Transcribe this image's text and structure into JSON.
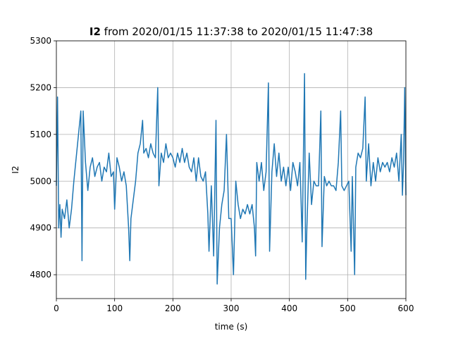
{
  "chart_data": {
    "type": "line",
    "title": {
      "bold": "I2",
      "rest": "from 2020/01/15 11:37:38 to 2020/01/15 11:47:38"
    },
    "xlabel": "time (s)",
    "ylabel": "I2",
    "xlim": [
      0,
      600
    ],
    "ylim": [
      4749,
      5300
    ],
    "xticks": [
      0,
      100,
      200,
      300,
      400,
      500,
      600
    ],
    "yticks": [
      4800,
      4900,
      5000,
      5100,
      5200,
      5300
    ],
    "grid": true,
    "series": [
      {
        "color": "#1f77b4",
        "x": [
          0,
          2,
          4,
          6,
          8,
          10,
          14,
          18,
          22,
          26,
          30,
          34,
          38,
          42,
          44,
          46,
          50,
          54,
          58,
          62,
          66,
          70,
          74,
          78,
          82,
          86,
          90,
          94,
          98,
          100,
          104,
          108,
          112,
          116,
          120,
          124,
          126,
          128,
          132,
          136,
          140,
          144,
          148,
          150,
          154,
          158,
          162,
          166,
          170,
          174,
          176,
          180,
          184,
          188,
          192,
          196,
          200,
          204,
          208,
          212,
          216,
          220,
          224,
          228,
          232,
          236,
          240,
          244,
          248,
          252,
          256,
          260,
          262,
          266,
          270,
          274,
          276,
          280,
          284,
          288,
          292,
          296,
          300,
          304,
          308,
          312,
          316,
          320,
          324,
          328,
          332,
          336,
          340,
          342,
          344,
          348,
          352,
          356,
          360,
          364,
          366,
          370,
          374,
          378,
          382,
          386,
          390,
          394,
          398,
          402,
          406,
          410,
          414,
          418,
          420,
          422,
          426,
          428,
          430,
          434,
          438,
          442,
          446,
          450,
          454,
          456,
          460,
          464,
          468,
          472,
          476,
          480,
          484,
          488,
          490,
          494,
          498,
          502,
          506,
          508,
          512,
          514,
          518,
          522,
          526,
          530,
          532,
          536,
          540,
          544,
          548,
          552,
          556,
          560,
          564,
          568,
          572,
          576,
          580,
          584,
          588,
          592,
          594,
          596,
          598,
          600
        ],
        "values": [
          4990,
          5180,
          4900,
          4950,
          4880,
          4940,
          4920,
          4960,
          4900,
          4940,
          5000,
          5050,
          5100,
          5150,
          4830,
          5150,
          5040,
          4980,
          5030,
          5050,
          5010,
          5030,
          5040,
          5000,
          5030,
          5020,
          5060,
          5010,
          5020,
          4940,
          5050,
          5030,
          5000,
          5020,
          4990,
          4900,
          4830,
          4920,
          4960,
          5000,
          5060,
          5080,
          5130,
          5060,
          5070,
          5050,
          5080,
          5060,
          5050,
          5200,
          4990,
          5060,
          5040,
          5080,
          5050,
          5060,
          5050,
          5030,
          5060,
          5040,
          5070,
          5040,
          5060,
          5030,
          5020,
          5050,
          5000,
          5050,
          5010,
          5000,
          5020,
          4930,
          4850,
          4990,
          4840,
          5130,
          4780,
          4900,
          4950,
          4980,
          5100,
          4920,
          4920,
          4800,
          5000,
          4950,
          4920,
          4940,
          4930,
          4950,
          4930,
          4950,
          4900,
          4840,
          5040,
          5000,
          5040,
          4980,
          5020,
          5210,
          4850,
          5020,
          5080,
          5010,
          5060,
          5000,
          5030,
          4990,
          5030,
          4980,
          5040,
          5020,
          4990,
          5040,
          4960,
          4870,
          5230,
          4790,
          4900,
          5060,
          4950,
          5000,
          4990,
          4990,
          5150,
          4860,
          5010,
          4990,
          5000,
          4990,
          4990,
          4980,
          5040,
          5150,
          4990,
          4980,
          4990,
          5000,
          4850,
          5010,
          4800,
          5030,
          5060,
          5050,
          5070,
          5180,
          5000,
          5080,
          4990,
          5040,
          5000,
          5050,
          5020,
          5040,
          5030,
          5040,
          5020,
          5050,
          5030,
          5060,
          5000,
          5100,
          4970,
          5040,
          5200,
          4970
        ]
      }
    ]
  }
}
